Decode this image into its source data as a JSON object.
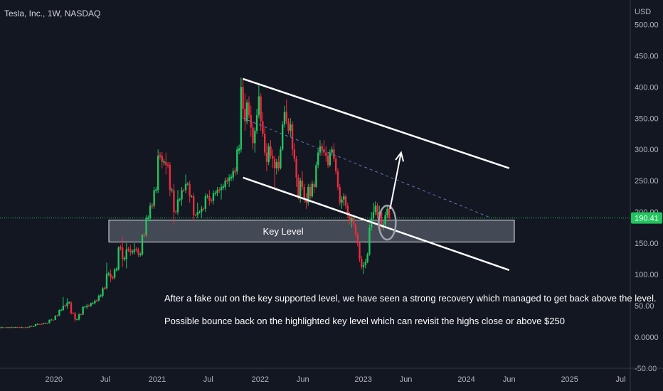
{
  "header": {
    "title": "Tesla, Inc., 1W, NASDAQ"
  },
  "colors": {
    "background": "#131722",
    "up": "#22c55e",
    "down": "#ef2b3c",
    "price_line": "#22c55e",
    "zone_fill": "#6b7280",
    "zone_border": "#e5e7eb",
    "channel": "#ffffff",
    "dashed": "#5b7bb4",
    "circle": "#9ca3af",
    "axis_text": "#b2b5be"
  },
  "chart_data": {
    "type": "candlestick",
    "title": "Tesla, Inc., 1W, NASDAQ",
    "currency": "USD",
    "ylim": [
      -50,
      530
    ],
    "y_ticks": [
      "500.00",
      "450.00",
      "400.00",
      "350.00",
      "300.00",
      "250.00",
      "200.00",
      "150.00",
      "100.00",
      "50.00",
      "0.0000",
      "-50.00"
    ],
    "y_tick_values": [
      500,
      450,
      400,
      350,
      300,
      250,
      200,
      150,
      100,
      50,
      0,
      -50
    ],
    "x_ticks": [
      "2020",
      "Jul",
      "2021",
      "Jul",
      "2022",
      "Jun",
      "2023",
      "Jun",
      "2024",
      "Jun",
      "2025",
      "Jul"
    ],
    "x_tick_dates": [
      "2020-01-01",
      "2020-07-01",
      "2021-01-01",
      "2021-07-01",
      "2022-01-01",
      "2022-06-01",
      "2023-01-01",
      "2023-06-01",
      "2024-01-01",
      "2024-06-01",
      "2025-01-01",
      "2025-07-01"
    ],
    "x_range": [
      "2019-06-24",
      "2025-08-04"
    ],
    "current_price": 190.41,
    "current_price_label": "190.41",
    "key_level": {
      "label": "Key Level",
      "low": 152,
      "high": 187,
      "start": "2019-06-24",
      "end": "2024-09-02"
    },
    "channel_upper": {
      "start_date": "2021-11-01",
      "start_value": 413,
      "end_date": "2024-06-01",
      "end_value": 270
    },
    "channel_lower": {
      "start_date": "2021-11-01",
      "start_value": 255,
      "end_date": "2024-06-01",
      "end_value": 107
    },
    "dashed_line": {
      "start_date": "2021-11-01",
      "start_value": 350,
      "end_date": "2024-04-01",
      "end_value": 190
    },
    "circle": {
      "date": "2023-03-27",
      "value": 183
    },
    "arrow": {
      "start_date": "2023-04-06",
      "start_value": 205,
      "end_date": "2023-05-15",
      "end_value": 295
    },
    "annotations": [
      "After a fake out on the key supported level, we have seen a strong recovery which managed to get back above the level.",
      "Possible bounce back on the highlighted key level which can revisit the highs close or above $250"
    ],
    "series": [
      {
        "candles": [
          [
            "2019-06-24",
            15.0,
            15.5,
            14.6,
            15.3
          ],
          [
            "2019-07-29",
            15.3,
            16.0,
            14.9,
            15.6
          ],
          [
            "2019-09-02",
            15.6,
            16.4,
            15.1,
            15.4
          ],
          [
            "2019-10-07",
            15.4,
            17.5,
            15.2,
            17.2
          ],
          [
            "2019-10-28",
            17.2,
            21.0,
            16.9,
            20.5
          ],
          [
            "2019-11-25",
            20.5,
            22.5,
            20.1,
            22.0
          ],
          [
            "2019-12-16",
            22.0,
            28.0,
            21.8,
            27.5
          ],
          [
            "2020-01-06",
            27.5,
            35.0,
            27.0,
            34.0
          ],
          [
            "2020-01-20",
            34.0,
            44.0,
            33.5,
            43.0
          ],
          [
            "2020-02-03",
            43.0,
            64.0,
            42.0,
            50.0
          ],
          [
            "2020-02-17",
            50.0,
            62.0,
            45.0,
            55.0
          ],
          [
            "2020-03-02",
            55.0,
            57.0,
            36.0,
            38.0
          ],
          [
            "2020-03-16",
            38.0,
            40.0,
            24.0,
            28.0
          ],
          [
            "2020-03-30",
            28.0,
            38.0,
            26.5,
            36.0
          ],
          [
            "2020-04-13",
            36.0,
            50.0,
            35.0,
            48.0
          ],
          [
            "2020-04-27",
            48.0,
            53.0,
            45.0,
            50.0
          ],
          [
            "2020-05-11",
            50.0,
            55.0,
            48.0,
            54.0
          ],
          [
            "2020-05-25",
            54.0,
            60.0,
            52.0,
            58.0
          ],
          [
            "2020-06-08",
            58.0,
            68.0,
            57.0,
            66.0
          ],
          [
            "2020-06-22",
            66.0,
            80.0,
            63.0,
            78.0
          ],
          [
            "2020-07-06",
            78.0,
            119.0,
            76.0,
            101.0
          ],
          [
            "2020-07-20",
            101.0,
            108.0,
            88.0,
            95.0
          ],
          [
            "2020-08-03",
            95.0,
            110.0,
            92.0,
            108.0
          ],
          [
            "2020-08-17",
            108.0,
            145.0,
            106.0,
            143.0
          ],
          [
            "2020-08-31",
            143.0,
            160.0,
            112.0,
            125.0
          ],
          [
            "2020-09-14",
            125.0,
            150.0,
            110.0,
            140.0
          ],
          [
            "2020-09-28",
            140.0,
            148.0,
            130.0,
            136.0
          ],
          [
            "2020-10-12",
            136.0,
            150.0,
            132.0,
            140.0
          ],
          [
            "2020-10-26",
            140.0,
            143.0,
            128.0,
            132.0
          ],
          [
            "2020-11-09",
            132.0,
            165.0,
            130.0,
            163.0
          ],
          [
            "2020-11-23",
            163.0,
            195.0,
            160.0,
            190.0
          ],
          [
            "2020-12-07",
            190.0,
            215.0,
            185.0,
            210.0
          ],
          [
            "2020-12-21",
            210.0,
            240.0,
            205.0,
            235.0
          ],
          [
            "2021-01-04",
            235.0,
            300.0,
            230.0,
            290.0
          ],
          [
            "2021-01-18",
            290.0,
            296.0,
            270.0,
            280.0
          ],
          [
            "2021-02-01",
            280.0,
            295.0,
            260.0,
            275.0
          ],
          [
            "2021-02-15",
            275.0,
            280.0,
            225.0,
            235.0
          ],
          [
            "2021-03-01",
            235.0,
            245.0,
            180.0,
            200.0
          ],
          [
            "2021-03-15",
            200.0,
            235.0,
            195.0,
            220.0
          ],
          [
            "2021-03-29",
            220.0,
            240.0,
            210.0,
            235.0
          ],
          [
            "2021-04-12",
            235.0,
            260.0,
            230.0,
            245.0
          ],
          [
            "2021-04-26",
            245.0,
            250.0,
            215.0,
            225.0
          ],
          [
            "2021-05-10",
            225.0,
            230.0,
            185.0,
            195.0
          ],
          [
            "2021-05-24",
            195.0,
            215.0,
            190.0,
            200.0
          ],
          [
            "2021-06-07",
            200.0,
            210.0,
            190.0,
            205.0
          ],
          [
            "2021-06-21",
            205.0,
            230.0,
            200.0,
            225.0
          ],
          [
            "2021-07-05",
            225.0,
            235.0,
            210.0,
            218.0
          ],
          [
            "2021-07-19",
            218.0,
            235.0,
            212.0,
            230.0
          ],
          [
            "2021-08-02",
            230.0,
            240.0,
            225.0,
            235.0
          ],
          [
            "2021-08-16",
            235.0,
            245.0,
            220.0,
            240.0
          ],
          [
            "2021-08-30",
            240.0,
            255.0,
            235.0,
            250.0
          ],
          [
            "2021-09-13",
            250.0,
            260.0,
            240.0,
            255.0
          ],
          [
            "2021-09-27",
            255.0,
            270.0,
            250.0,
            265.0
          ],
          [
            "2021-10-11",
            265.0,
            305.0,
            260.0,
            300.0
          ],
          [
            "2021-10-25",
            300.0,
            415.0,
            295.0,
            400.0
          ],
          [
            "2021-11-01",
            400.0,
            414.0,
            350.0,
            365.0
          ],
          [
            "2021-11-08",
            365.0,
            390.0,
            330.0,
            345.0
          ],
          [
            "2021-11-15",
            345.0,
            380.0,
            340.0,
            375.0
          ],
          [
            "2021-11-22",
            375.0,
            385.0,
            350.0,
            355.0
          ],
          [
            "2021-11-29",
            355.0,
            370.0,
            320.0,
            335.0
          ],
          [
            "2021-12-06",
            335.0,
            345.0,
            300.0,
            310.0
          ],
          [
            "2021-12-13",
            310.0,
            335.0,
            295.0,
            330.0
          ],
          [
            "2021-12-20",
            330.0,
            365.0,
            325.0,
            355.0
          ],
          [
            "2021-12-27",
            355.0,
            405.0,
            350.0,
            385.0
          ],
          [
            "2022-01-03",
            385.0,
            390.0,
            330.0,
            345.0
          ],
          [
            "2022-01-10",
            345.0,
            360.0,
            320.0,
            325.0
          ],
          [
            "2022-01-17",
            325.0,
            335.0,
            290.0,
            295.0
          ],
          [
            "2022-01-24",
            295.0,
            310.0,
            265.0,
            280.0
          ],
          [
            "2022-01-31",
            280.0,
            310.0,
            275.0,
            305.0
          ],
          [
            "2022-02-07",
            305.0,
            315.0,
            285.0,
            290.0
          ],
          [
            "2022-02-14",
            290.0,
            300.0,
            270.0,
            285.0
          ],
          [
            "2022-02-21",
            285.0,
            290.0,
            235.0,
            270.0
          ],
          [
            "2022-02-28",
            270.0,
            285.0,
            260.0,
            280.0
          ],
          [
            "2022-03-07",
            280.0,
            290.0,
            265.0,
            270.0
          ],
          [
            "2022-03-14",
            270.0,
            305.0,
            268.0,
            300.0
          ],
          [
            "2022-03-21",
            300.0,
            345.0,
            298.0,
            340.0
          ],
          [
            "2022-03-28",
            340.0,
            370.0,
            335.0,
            360.0
          ],
          [
            "2022-04-04",
            360.0,
            380.0,
            340.0,
            345.0
          ],
          [
            "2022-04-11",
            345.0,
            350.0,
            325.0,
            330.0
          ],
          [
            "2022-04-18",
            330.0,
            350.0,
            320.0,
            340.0
          ],
          [
            "2022-04-25",
            340.0,
            345.0,
            290.0,
            300.0
          ],
          [
            "2022-05-02",
            300.0,
            310.0,
            280.0,
            285.0
          ],
          [
            "2022-05-09",
            285.0,
            290.0,
            240.0,
            255.0
          ],
          [
            "2022-05-16",
            255.0,
            260.0,
            220.0,
            225.0
          ],
          [
            "2022-05-23",
            225.0,
            255.0,
            215.0,
            250.0
          ],
          [
            "2022-05-30",
            250.0,
            265.0,
            235.0,
            240.0
          ],
          [
            "2022-06-06",
            240.0,
            245.0,
            215.0,
            220.0
          ],
          [
            "2022-06-13",
            220.0,
            230.0,
            205.0,
            215.0
          ],
          [
            "2022-06-20",
            215.0,
            245.0,
            210.0,
            240.0
          ],
          [
            "2022-06-27",
            240.0,
            245.0,
            220.0,
            225.0
          ],
          [
            "2022-07-04",
            225.0,
            250.0,
            222.0,
            245.0
          ],
          [
            "2022-07-11",
            245.0,
            250.0,
            230.0,
            240.0
          ],
          [
            "2022-07-18",
            240.0,
            280.0,
            238.0,
            275.0
          ],
          [
            "2022-07-25",
            275.0,
            300.0,
            270.0,
            295.0
          ],
          [
            "2022-08-01",
            295.0,
            315.0,
            290.0,
            305.0
          ],
          [
            "2022-08-08",
            305.0,
            310.0,
            290.0,
            300.0
          ],
          [
            "2022-08-15",
            300.0,
            315.0,
            290.0,
            295.0
          ],
          [
            "2022-08-22",
            295.0,
            305.0,
            280.0,
            290.0
          ],
          [
            "2022-08-29",
            290.0,
            295.0,
            270.0,
            275.0
          ],
          [
            "2022-09-05",
            275.0,
            300.0,
            272.0,
            295.0
          ],
          [
            "2022-09-12",
            295.0,
            305.0,
            290.0,
            300.0
          ],
          [
            "2022-09-19",
            300.0,
            310.0,
            280.0,
            285.0
          ],
          [
            "2022-09-26",
            285.0,
            290.0,
            260.0,
            265.0
          ],
          [
            "2022-10-03",
            265.0,
            270.0,
            235.0,
            240.0
          ],
          [
            "2022-10-10",
            240.0,
            245.0,
            210.0,
            215.0
          ],
          [
            "2022-10-17",
            215.0,
            225.0,
            205.0,
            220.0
          ],
          [
            "2022-10-24",
            220.0,
            230.0,
            210.0,
            225.0
          ],
          [
            "2022-10-31",
            225.0,
            228.0,
            205.0,
            210.0
          ],
          [
            "2022-11-07",
            210.0,
            215.0,
            190.0,
            195.0
          ],
          [
            "2022-11-14",
            195.0,
            200.0,
            180.0,
            185.0
          ],
          [
            "2022-11-21",
            185.0,
            195.0,
            175.0,
            190.0
          ],
          [
            "2022-11-28",
            190.0,
            195.0,
            175.0,
            180.0
          ],
          [
            "2022-12-05",
            180.0,
            182.0,
            160.0,
            165.0
          ],
          [
            "2022-12-12",
            165.0,
            168.0,
            145.0,
            150.0
          ],
          [
            "2022-12-19",
            150.0,
            152.0,
            120.0,
            125.0
          ],
          [
            "2022-12-26",
            125.0,
            130.0,
            108.0,
            112.0
          ],
          [
            "2023-01-02",
            112.0,
            120.0,
            101.0,
            115.0
          ],
          [
            "2023-01-09",
            115.0,
            125.0,
            110.0,
            120.0
          ],
          [
            "2023-01-16",
            120.0,
            135.0,
            118.0,
            132.0
          ],
          [
            "2023-01-23",
            132.0,
            180.0,
            130.0,
            175.0
          ],
          [
            "2023-01-30",
            175.0,
            200.0,
            170.0,
            190.0
          ],
          [
            "2023-02-06",
            190.0,
            215.0,
            185.0,
            200.0
          ],
          [
            "2023-02-13",
            200.0,
            217.0,
            195.0,
            210.0
          ],
          [
            "2023-02-20",
            210.0,
            215.0,
            190.0,
            195.0
          ],
          [
            "2023-02-27",
            195.0,
            210.0,
            185.0,
            200.0
          ],
          [
            "2023-03-06",
            200.0,
            205.0,
            170.0,
            175.0
          ],
          [
            "2023-03-13",
            175.0,
            185.0,
            170.0,
            180.0
          ],
          [
            "2023-03-20",
            180.0,
            200.0,
            175.0,
            195.0
          ],
          [
            "2023-03-27",
            195.0,
            210.0,
            190.0,
            205.0
          ],
          [
            "2023-04-03",
            205.0,
            208.0,
            185.0,
            190.41
          ]
        ]
      }
    ]
  }
}
